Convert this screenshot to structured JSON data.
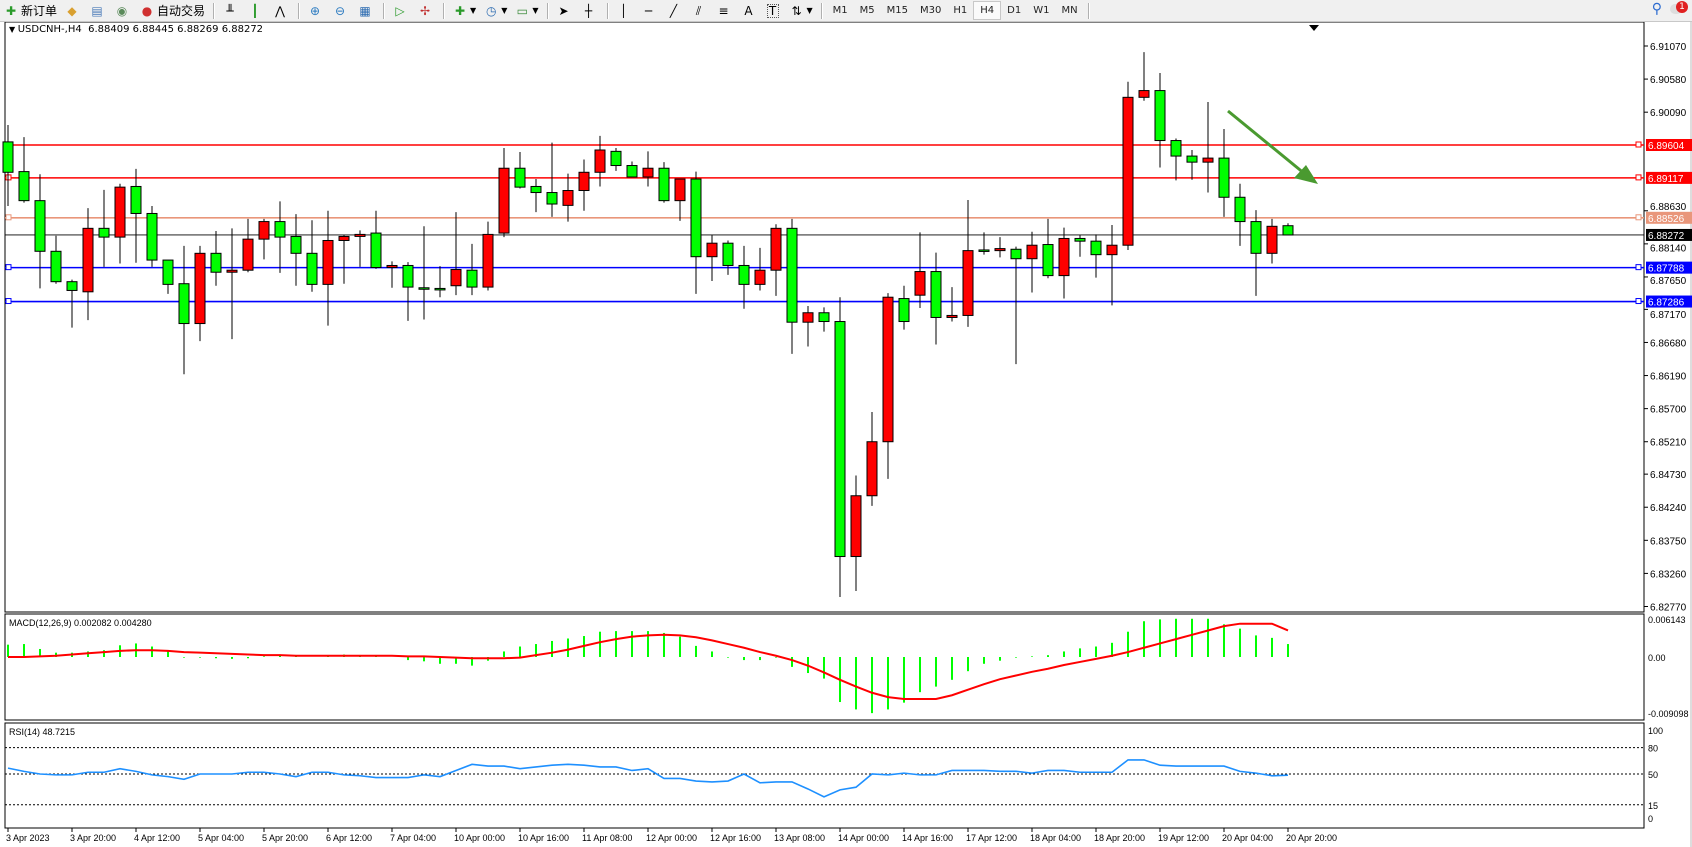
{
  "toolbar": {
    "new_order": "新订单",
    "auto_trade": "自动交易",
    "timeframes": [
      "M1",
      "M5",
      "M15",
      "M30",
      "H1",
      "H4",
      "D1",
      "W1",
      "MN"
    ],
    "active_timeframe": "H4",
    "tool_letter_a": "A",
    "tool_letter_t": "T",
    "notification_count": "1"
  },
  "chart_header": {
    "symbol": "USDCNH-,H4",
    "ohlc": "6.88409 6.88445 6.88269 6.88272"
  },
  "colors": {
    "up_candle": "#ff0000",
    "down_candle": "#00ff00",
    "resistance": "#ff0000",
    "mid_level": "#e9967a",
    "support": "#0000ff",
    "arrow": "#4a9a30",
    "macd_signal": "#ff0000",
    "macd_hist": "#00ff00",
    "rsi": "#1e90ff"
  },
  "chart_data": [
    {
      "type": "candlestick",
      "symbol": "USDCNH-",
      "timeframe": "H4",
      "ylim": [
        6.8277,
        6.9107
      ],
      "y_ticks": [
        "6.91070",
        "6.90580",
        "6.90090",
        "6.88630",
        "6.88140",
        "6.87650",
        "6.87170",
        "6.86680",
        "6.86190",
        "6.85700",
        "6.85210",
        "6.84730",
        "6.84240",
        "6.83750",
        "6.83260",
        "6.82770"
      ],
      "x_labels": [
        "3 Apr 2023",
        "3 Apr 20:00",
        "4 Apr 12:00",
        "5 Apr 04:00",
        "5 Apr 20:00",
        "6 Apr 12:00",
        "7 Apr 04:00",
        "10 Apr 00:00",
        "10 Apr 16:00",
        "11 Apr 08:00",
        "12 Apr 00:00",
        "12 Apr 16:00",
        "13 Apr 08:00",
        "14 Apr 00:00",
        "14 Apr 16:00",
        "17 Apr 12:00",
        "18 Apr 04:00",
        "18 Apr 20:00",
        "19 Apr 12:00",
        "20 Apr 04:00",
        "20 Apr 20:00"
      ],
      "candles_ohlc": [
        [
          6.8965,
          6.899,
          6.887,
          6.892
        ],
        [
          6.8921,
          6.8972,
          6.8875,
          6.8878
        ],
        [
          6.8878,
          6.8917,
          6.8748,
          6.8803
        ],
        [
          6.8803,
          6.8826,
          6.8755,
          6.8758
        ],
        [
          6.8758,
          6.8761,
          6.869,
          6.8745
        ],
        [
          6.8743,
          6.8867,
          6.8701,
          6.8837
        ],
        [
          6.8837,
          6.8894,
          6.878,
          6.8824
        ],
        [
          6.8824,
          6.8903,
          6.8785,
          6.8898
        ],
        [
          6.8899,
          6.8925,
          6.8786,
          6.8859
        ],
        [
          6.8859,
          6.887,
          6.878,
          6.879
        ],
        [
          6.879,
          6.879,
          6.874,
          6.8754
        ],
        [
          6.8755,
          6.8811,
          6.8621,
          6.8696
        ],
        [
          6.8696,
          6.8811,
          6.867,
          6.88
        ],
        [
          6.88,
          6.8833,
          6.8752,
          6.8772
        ],
        [
          6.8772,
          6.8837,
          6.8673,
          6.8775
        ],
        [
          6.8775,
          6.8851,
          6.8772,
          6.8821
        ],
        [
          6.8821,
          6.8851,
          6.8791,
          6.8847
        ],
        [
          6.8847,
          6.8877,
          6.8771,
          6.8824
        ],
        [
          6.8825,
          6.8858,
          6.8752,
          6.88
        ],
        [
          6.88,
          6.8849,
          6.8743,
          6.8754
        ],
        [
          6.8754,
          6.8863,
          6.8693,
          6.8819
        ],
        [
          6.8819,
          6.8827,
          6.8755,
          6.8825
        ],
        [
          6.8825,
          6.8834,
          6.878,
          6.8828
        ],
        [
          6.883,
          6.8863,
          6.8777,
          6.8779
        ],
        [
          6.8779,
          6.8788,
          6.8749,
          6.8782
        ],
        [
          6.8782,
          6.8787,
          6.87,
          6.875
        ],
        [
          6.8749,
          6.884,
          6.8702,
          6.8749
        ],
        [
          6.8748,
          6.8781,
          6.8735,
          6.8748
        ],
        [
          6.8752,
          6.8861,
          6.8738,
          6.8776
        ],
        [
          6.8775,
          6.8814,
          6.8738,
          6.875
        ],
        [
          6.875,
          6.8847,
          6.8745,
          6.8828
        ],
        [
          6.883,
          6.8956,
          6.8824,
          6.8926
        ],
        [
          6.8926,
          6.895,
          6.8896,
          6.8898
        ],
        [
          6.8899,
          6.891,
          6.8861,
          6.889
        ],
        [
          6.889,
          6.8964,
          6.8854,
          6.8873
        ],
        [
          6.8871,
          6.8918,
          6.8847,
          6.8893
        ],
        [
          6.8893,
          6.8939,
          6.8863,
          6.892
        ],
        [
          6.892,
          6.8974,
          6.8899,
          6.8953
        ],
        [
          6.8951,
          6.8956,
          6.8922,
          6.893
        ],
        [
          6.893,
          6.8936,
          6.8913,
          6.8913
        ],
        [
          6.8913,
          6.8951,
          6.8899,
          6.8926
        ],
        [
          6.8926,
          6.8935,
          6.8875,
          6.8878
        ],
        [
          6.8878,
          6.891,
          6.8848,
          6.891
        ],
        [
          6.891,
          6.8921,
          6.874,
          6.8795
        ],
        [
          6.8795,
          6.8827,
          6.8759,
          6.8815
        ],
        [
          6.8815,
          6.8819,
          6.8768,
          6.8782
        ],
        [
          6.8782,
          6.8811,
          6.8718,
          6.8754
        ],
        [
          6.8754,
          6.8808,
          6.8745,
          6.8775
        ],
        [
          6.8775,
          6.8843,
          6.8737,
          6.8837
        ],
        [
          6.8837,
          6.8851,
          6.8651,
          6.8698
        ],
        [
          6.8698,
          6.8722,
          6.8662,
          6.8712
        ],
        [
          6.8712,
          6.872,
          6.8684,
          6.8699
        ],
        [
          6.8699,
          6.8735,
          6.8291,
          6.8351
        ],
        [
          6.8351,
          6.8471,
          6.83,
          6.8441
        ],
        [
          6.8441,
          6.8565,
          6.8426,
          6.8521
        ],
        [
          6.8521,
          6.8741,
          6.8466,
          6.8735
        ],
        [
          6.8733,
          6.8752,
          6.8687,
          6.8699
        ],
        [
          6.8738,
          6.8831,
          6.8719,
          6.8773
        ],
        [
          6.8773,
          6.8801,
          6.8665,
          6.8705
        ],
        [
          6.8705,
          6.875,
          6.8699,
          6.8708
        ],
        [
          6.8708,
          6.8879,
          6.8691,
          6.8804
        ],
        [
          6.8805,
          6.8831,
          6.8798,
          6.8805
        ],
        [
          6.8804,
          6.8824,
          6.8794,
          6.8807
        ],
        [
          6.8806,
          6.881,
          6.8636,
          6.8792
        ],
        [
          6.8792,
          6.8832,
          6.8742,
          6.8812
        ],
        [
          6.8813,
          6.8851,
          6.8763,
          6.8767
        ],
        [
          6.8767,
          6.8838,
          6.8733,
          6.8822
        ],
        [
          6.8822,
          6.8827,
          6.8795,
          6.8818
        ],
        [
          6.8818,
          6.8828,
          6.8764,
          6.8798
        ],
        [
          6.8798,
          6.8842,
          6.8723,
          6.8812
        ],
        [
          6.8812,
          6.9054,
          6.8805,
          6.9031
        ],
        [
          6.9031,
          6.9098,
          6.9026,
          6.9041
        ],
        [
          6.9041,
          6.9067,
          6.8927,
          6.8967
        ],
        [
          6.8967,
          6.897,
          6.8908,
          6.8944
        ],
        [
          6.8944,
          6.8953,
          6.8909,
          6.8935
        ],
        [
          6.8935,
          6.9024,
          6.889,
          6.8941
        ],
        [
          6.8941,
          6.8984,
          6.8854,
          6.8883
        ],
        [
          6.8883,
          6.8903,
          6.8811,
          6.8847
        ],
        [
          6.8847,
          6.8864,
          6.8737,
          6.88
        ],
        [
          6.88,
          6.8851,
          6.8785,
          6.884
        ],
        [
          6.88409,
          6.88445,
          6.88269,
          6.88272
        ]
      ],
      "current_price": "6.88272",
      "horizontal_lines": [
        {
          "price": "6.89604",
          "role": "resistance"
        },
        {
          "price": "6.89117",
          "role": "resistance"
        },
        {
          "price": "6.88526",
          "role": "mid_level"
        },
        {
          "price": "6.87788",
          "role": "support"
        },
        {
          "price": "6.87286",
          "role": "support"
        }
      ],
      "annotation": "downward-arrow"
    },
    {
      "type": "bar+line",
      "title": "MACD(12,26,9) 0.002082 0.004280",
      "y_ticks": [
        "0.006143",
        "0.00",
        "-0.009098"
      ],
      "ylim": [
        -0.009098,
        0.006143
      ],
      "histogram": [
        0.002,
        0.0021,
        0.0013,
        0.0007,
        0.0007,
        0.0009,
        0.0011,
        0.0019,
        0.0022,
        0.0017,
        0.001,
        -0.0001,
        -0.0001,
        -0.0002,
        -0.0003,
        -0.0002,
        0.0001,
        0.0004,
        0.0001,
        0.0,
        0.0002,
        0.0004,
        0.0002,
        0.0001,
        0.0,
        -0.0005,
        -0.0007,
        -0.0011,
        -0.0011,
        -0.0014,
        -0.0006,
        0.0009,
        0.0017,
        0.0021,
        0.0026,
        0.003,
        0.0034,
        0.0041,
        0.0042,
        0.0042,
        0.0042,
        0.0039,
        0.0033,
        0.0018,
        0.0009,
        -0.0001,
        -0.0005,
        -0.0005,
        -0.0001,
        -0.0016,
        -0.0026,
        -0.0035,
        -0.0073,
        -0.0085,
        -0.0091,
        -0.0085,
        -0.0074,
        -0.0057,
        -0.0048,
        -0.0037,
        -0.0023,
        -0.0011,
        -0.0006,
        -0.0001,
        0.0001,
        0.0003,
        0.0009,
        0.0014,
        0.0017,
        0.0023,
        0.0041,
        0.0058,
        0.0061,
        0.0062,
        0.0062,
        0.0062,
        0.0053,
        0.0046,
        0.0035,
        0.0031,
        0.0021
      ],
      "signal": [
        0,
        0,
        0.0001,
        0.0002,
        0.0004,
        0.0006,
        0.0008,
        0.001,
        0.0011,
        0.0011,
        0.001,
        0.0008,
        0.0007,
        0.0006,
        0.0005,
        0.0004,
        0.0003,
        0.0003,
        0.0002,
        0.0002,
        0.0002,
        0.0002,
        0.0002,
        0.0002,
        0.0002,
        0.0001,
        0.0001,
        0,
        -0.0001,
        -0.0002,
        -0.0002,
        -0.0002,
        -0.0001,
        0.0003,
        0.0007,
        0.0012,
        0.0018,
        0.0024,
        0.0029,
        0.0033,
        0.0035,
        0.0036,
        0.0035,
        0.0032,
        0.0027,
        0.0021,
        0.0015,
        0.0008,
        0.0002,
        -0.0005,
        -0.0014,
        -0.0025,
        -0.0037,
        -0.0048,
        -0.0058,
        -0.0065,
        -0.0068,
        -0.0068,
        -0.0068,
        -0.0062,
        -0.0053,
        -0.0044,
        -0.0036,
        -0.003,
        -0.0024,
        -0.0019,
        -0.0013,
        -0.0008,
        -0.0003,
        0.0002,
        0.0008,
        0.0015,
        0.0022,
        0.0029,
        0.0036,
        0.0043,
        0.005,
        0.0054,
        0.0054,
        0.0054,
        0.0043
      ]
    },
    {
      "type": "line",
      "title": "RSI(14) 48.7215",
      "y_ticks": [
        "100",
        "80",
        "50",
        "15",
        "0"
      ],
      "ylim": [
        0,
        100
      ],
      "levels": [
        80,
        50,
        15
      ],
      "values": [
        56.7,
        53,
        50,
        49,
        49,
        52,
        52,
        56,
        53,
        49,
        47,
        44,
        50,
        50,
        50,
        52,
        52,
        50,
        47,
        52,
        52,
        49,
        48,
        46,
        46,
        46,
        49,
        47,
        54,
        61,
        59,
        59,
        56,
        58,
        60,
        61,
        60,
        58,
        58,
        54,
        56,
        45,
        45,
        42,
        41,
        42,
        50,
        40,
        41,
        41,
        33,
        24,
        32,
        35,
        50,
        49,
        51,
        49,
        49,
        54,
        54,
        54,
        53,
        53,
        51,
        54,
        54,
        52,
        52,
        52,
        66,
        66,
        60,
        59,
        59,
        59,
        59,
        53,
        51,
        48,
        48.7
      ]
    }
  ]
}
